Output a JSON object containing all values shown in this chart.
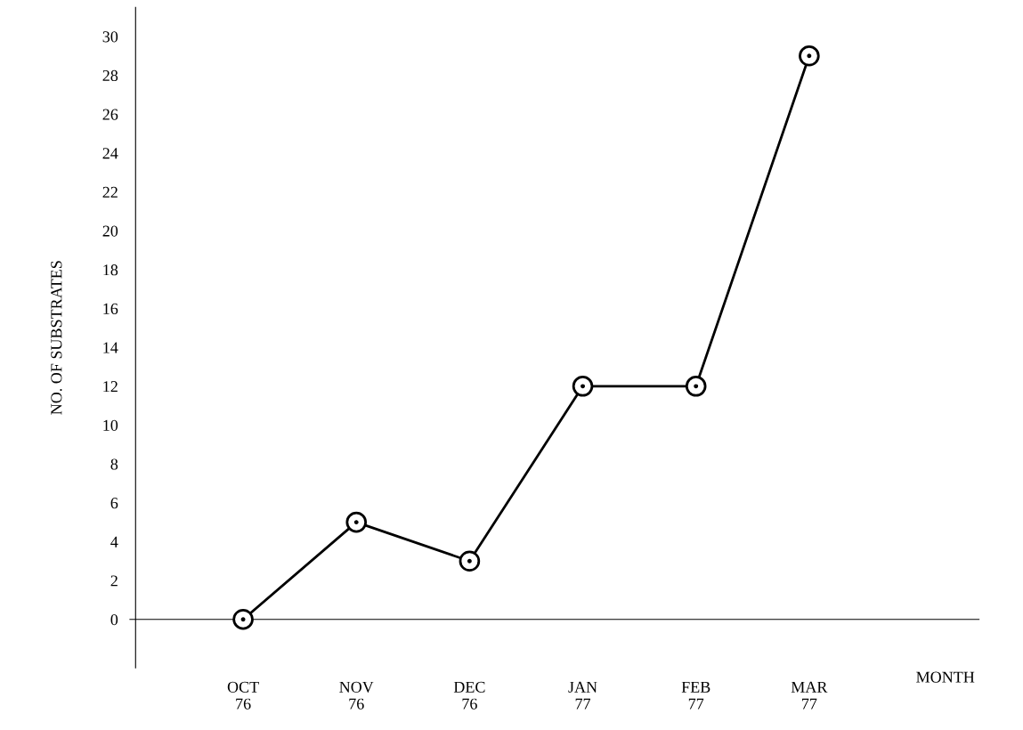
{
  "chart_data": {
    "type": "line",
    "categories": [
      "OCT\n76",
      "NOV\n76",
      "DEC\n76",
      "JAN\n77",
      "FEB\n77",
      "MAR\n77"
    ],
    "series": [
      {
        "color": "#000000",
        "values": [
          0,
          5,
          3,
          12,
          12,
          29
        ]
      }
    ],
    "ylabel": "NO. OF SUBSTRATES",
    "xlabel": "MONTH",
    "ylim": [
      -2.5,
      31.5
    ],
    "yticks": [
      0,
      2,
      4,
      6,
      8,
      10,
      12,
      14,
      16,
      18,
      20,
      22,
      24,
      26,
      28,
      30
    ],
    "marker": "circle",
    "line_style": "solid",
    "legend": false
  }
}
